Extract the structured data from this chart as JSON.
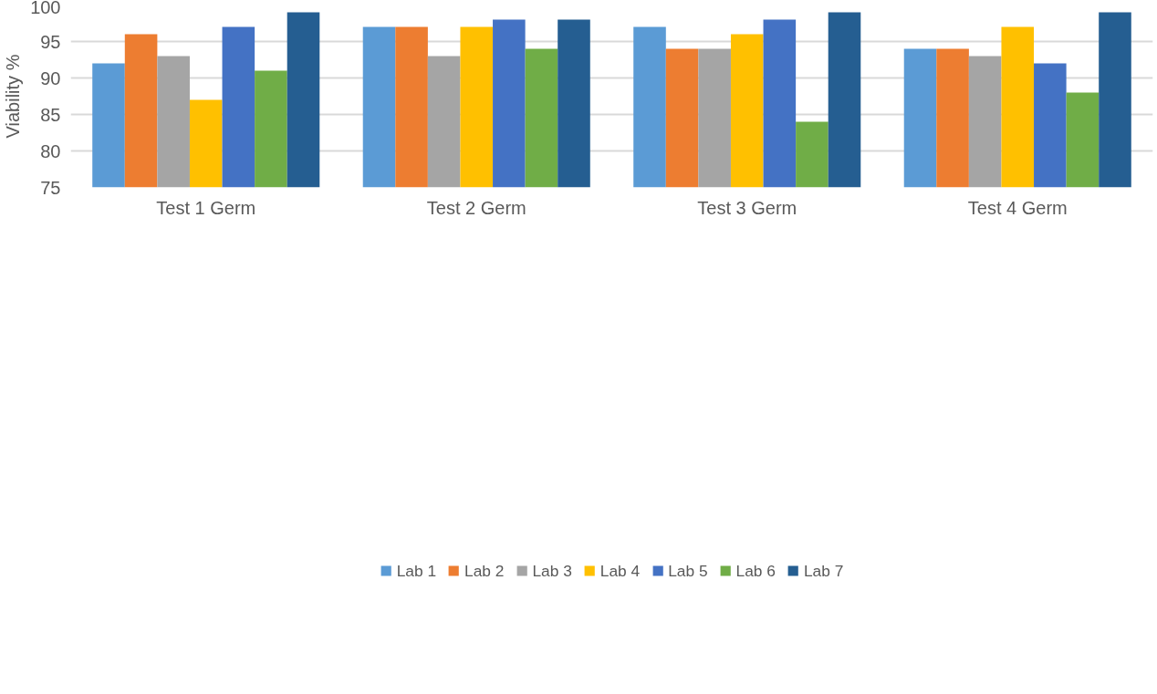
{
  "chart_data": {
    "type": "bar",
    "ylabel": "Viability %",
    "categories": [
      "Test 1 Germ",
      "Test 2 Germ",
      "Test 3 Germ",
      "Test 4 Germ"
    ],
    "series": [
      {
        "name": "Lab 1",
        "color": "#5b9bd5",
        "values": [
          92,
          97,
          97,
          94
        ]
      },
      {
        "name": "Lab 2",
        "color": "#ed7d31",
        "values": [
          96,
          97,
          94,
          94
        ]
      },
      {
        "name": "Lab 3",
        "color": "#a5a5a5",
        "values": [
          93,
          93,
          94,
          93
        ]
      },
      {
        "name": "Lab 4",
        "color": "#ffc000",
        "values": [
          87,
          97,
          96,
          97
        ]
      },
      {
        "name": "Lab 5",
        "color": "#4472c4",
        "values": [
          97,
          98,
          98,
          92
        ]
      },
      {
        "name": "Lab 6",
        "color": "#70ad47",
        "values": [
          91,
          94,
          84,
          88
        ]
      },
      {
        "name": "Lab 7",
        "color": "#255e91",
        "values": [
          99,
          98,
          99,
          99
        ]
      }
    ],
    "ylim": [
      75,
      100
    ],
    "yticks": [
      75,
      80,
      85,
      90,
      95,
      100
    ],
    "grid": "y",
    "legend": "bottom"
  }
}
